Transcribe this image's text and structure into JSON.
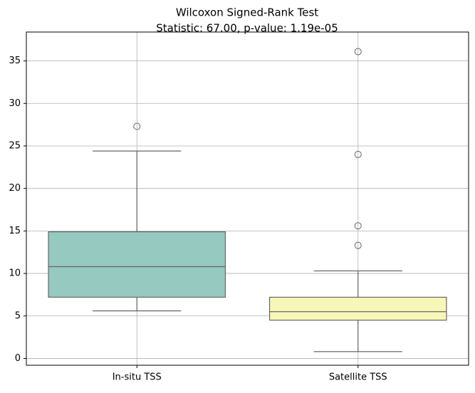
{
  "chart_data": {
    "type": "box",
    "title": "Wilcoxon Signed-Rank Test",
    "subtitle": "Statistic: 67.00, p-value: 1.19e-05",
    "categories": [
      "In-situ TSS",
      "Satellite TSS"
    ],
    "colors": [
      "#96c9bf",
      "#f7f7b8"
    ],
    "boxes": [
      {
        "whislo": 5.6,
        "q1": 7.2,
        "med": 10.8,
        "q3": 14.9,
        "whishi": 24.4,
        "fliers": [
          27.3
        ]
      },
      {
        "whislo": 0.8,
        "q1": 4.5,
        "med": 5.5,
        "q3": 7.2,
        "whishi": 10.3,
        "fliers": [
          13.3,
          15.6,
          24.0,
          36.1
        ]
      }
    ],
    "ylim": [
      -0.8,
      38.4
    ],
    "yticks": [
      0,
      5,
      10,
      15,
      20,
      25,
      30,
      35
    ],
    "grid": true
  }
}
